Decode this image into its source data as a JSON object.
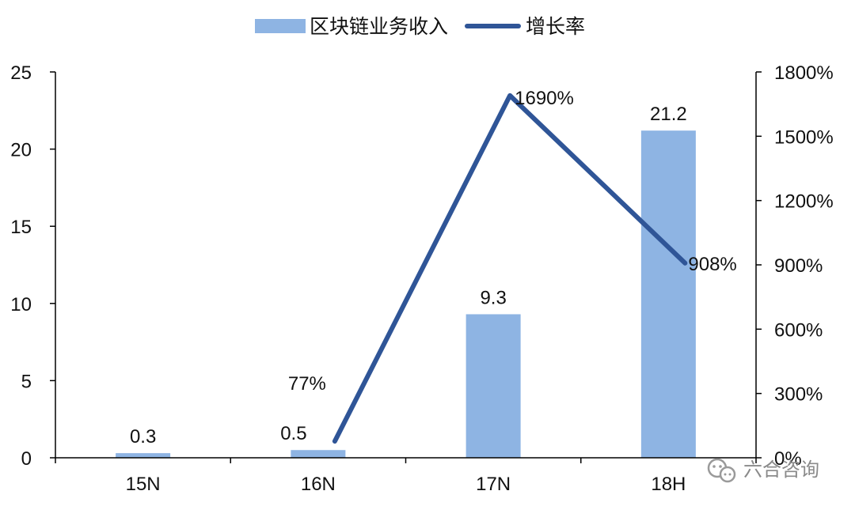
{
  "chart_data": {
    "type": "bar",
    "categories": [
      "15N",
      "16N",
      "17N",
      "18H"
    ],
    "series": [
      {
        "name": "区块链业务收入",
        "type": "bar",
        "axis": "left",
        "values": [
          0.3,
          0.5,
          9.3,
          21.2
        ],
        "labels": [
          "0.3",
          "0.5",
          "9.3",
          "21.2"
        ]
      },
      {
        "name": "增长率",
        "type": "line",
        "axis": "right",
        "values": [
          null,
          77,
          1690,
          908
        ],
        "labels": [
          "",
          "77%",
          "1690%",
          "908%"
        ]
      }
    ],
    "left_axis": {
      "ylim": [
        0,
        25
      ],
      "ticks": [
        0,
        5,
        10,
        15,
        20,
        25
      ],
      "tick_labels": [
        "0",
        "5",
        "10",
        "15",
        "20",
        "25"
      ]
    },
    "right_axis": {
      "ylim": [
        0,
        1800
      ],
      "ticks": [
        0,
        300,
        600,
        900,
        1200,
        1500,
        1800
      ],
      "tick_labels": [
        "0%",
        "300%",
        "600%",
        "900%",
        "1200%",
        "1500%",
        "1800%"
      ]
    },
    "legend_position": "top-center",
    "grid": false,
    "colors": {
      "bar": "#8eb4e3",
      "line": "#2f5597",
      "axis": "#000000"
    }
  },
  "watermark": {
    "icon": "wechat-icon",
    "text": "六合咨询"
  }
}
